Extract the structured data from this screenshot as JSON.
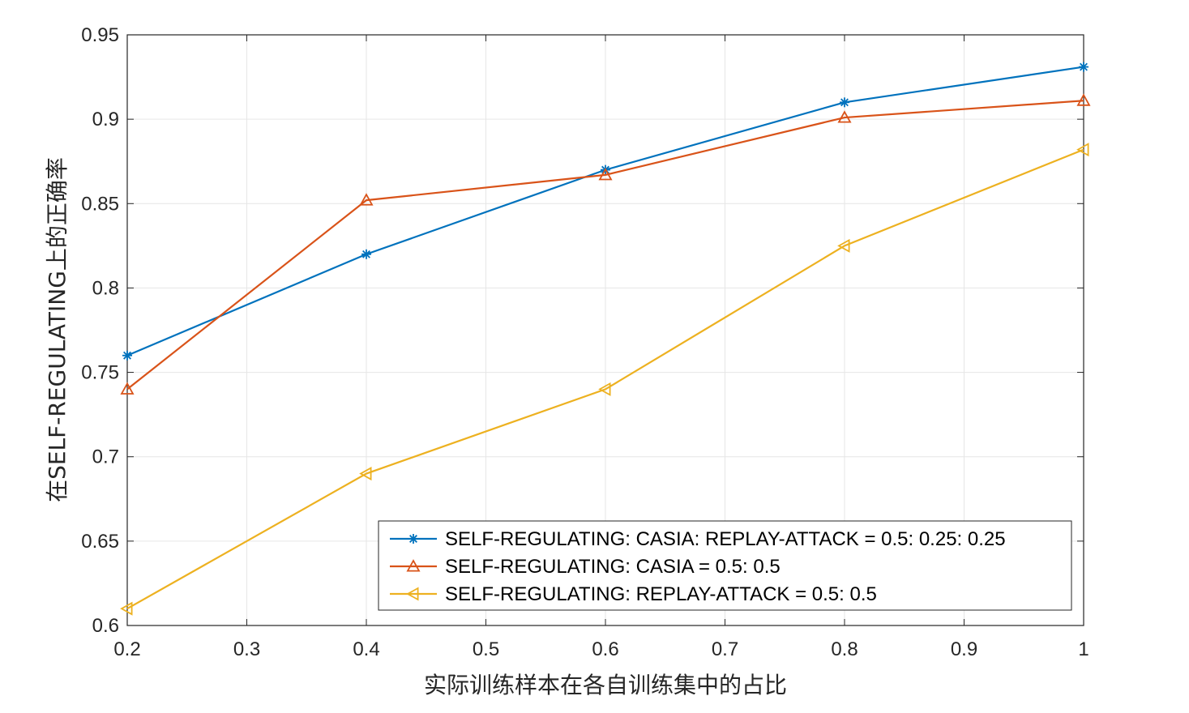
{
  "chart_data": {
    "type": "line",
    "title": "",
    "xlabel": "实际训练样本在各自训练集中的占比",
    "ylabel": "在SELF-REGULATING上的正确率",
    "xlim": [
      0.2,
      1.0
    ],
    "ylim": [
      0.6,
      0.95
    ],
    "xticks": [
      "0.2",
      "0.3",
      "0.4",
      "0.5",
      "0.6",
      "0.7",
      "0.8",
      "0.9",
      "1"
    ],
    "yticks": [
      "0.6",
      "0.65",
      "0.7",
      "0.75",
      "0.8",
      "0.85",
      "0.9",
      "0.95"
    ],
    "grid": true,
    "legend_position": "bottom-right",
    "x": [
      0.2,
      0.4,
      0.6,
      0.8,
      1.0
    ],
    "series": [
      {
        "name": "SELF-REGULATING: CASIA: REPLAY-ATTACK = 0.5: 0.25: 0.25",
        "values": [
          0.76,
          0.82,
          0.87,
          0.91,
          0.931
        ],
        "color": "#0072BD",
        "marker": "asterisk"
      },
      {
        "name": "SELF-REGULATING: CASIA = 0.5: 0.5",
        "values": [
          0.74,
          0.852,
          0.867,
          0.901,
          0.911
        ],
        "color": "#D95319",
        "marker": "triangle-up"
      },
      {
        "name": "SELF-REGULATING: REPLAY-ATTACK = 0.5: 0.5",
        "values": [
          0.61,
          0.69,
          0.74,
          0.825,
          0.882
        ],
        "color": "#EDB120",
        "marker": "triangle-left"
      }
    ]
  }
}
